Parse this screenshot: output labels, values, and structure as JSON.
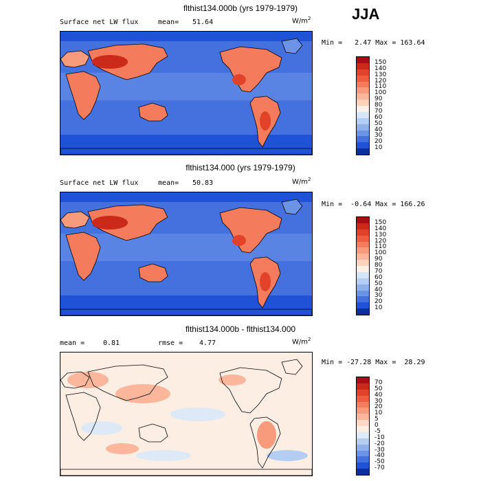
{
  "season": "JJA",
  "panels": [
    {
      "title": "flthist134.000b (yrs 1979-1979)",
      "sub_left": "Surface net LW flux",
      "stat1_label": "mean=",
      "stat1_value": "51.64",
      "stat2_label": "",
      "stat2_value": "",
      "units": "W/m",
      "units_exp": "2",
      "minmax": "Min =   2.47 Max = 163.64",
      "colorbar_labels": [
        "150",
        "140",
        "130",
        "120",
        "110",
        "100",
        "90",
        "80",
        "70",
        "60",
        "50",
        "40",
        "30",
        "20",
        "10"
      ],
      "colorbar_colors": [
        "#a50f15",
        "#cb2a1b",
        "#e2412a",
        "#ee5d3f",
        "#f47c5c",
        "#f89a7c",
        "#fbb69c",
        "#fdd3be",
        "#fdf0e6",
        "#d6e6f8",
        "#b4cef3",
        "#8eb1ec",
        "#6b93e6",
        "#4571df",
        "#1f52d6",
        "#0b2f9c"
      ],
      "map_style": "absolute"
    },
    {
      "title": "flthist134.000 (yrs 1979-1979)",
      "sub_left": "Surface net LW flux",
      "stat1_label": "mean=",
      "stat1_value": "50.83",
      "stat2_label": "",
      "stat2_value": "",
      "units": "W/m",
      "units_exp": "2",
      "minmax": "Min =  -0.64 Max = 166.26",
      "colorbar_labels": [
        "150",
        "140",
        "130",
        "120",
        "110",
        "100",
        "90",
        "80",
        "70",
        "60",
        "50",
        "40",
        "30",
        "20",
        "10"
      ],
      "colorbar_colors": [
        "#a50f15",
        "#cb2a1b",
        "#e2412a",
        "#ee5d3f",
        "#f47c5c",
        "#f89a7c",
        "#fbb69c",
        "#fdd3be",
        "#fdf0e6",
        "#d6e6f8",
        "#b4cef3",
        "#8eb1ec",
        "#6b93e6",
        "#4571df",
        "#1f52d6",
        "#0b2f9c"
      ],
      "map_style": "absolute"
    },
    {
      "title": "flthist134.000b - flthist134.000",
      "sub_left": "mean =",
      "stat1_label": "",
      "stat1_value": "0.81",
      "stat2_label": "rmse =",
      "stat2_value": "4.77",
      "units": "W/m",
      "units_exp": "2",
      "minmax": "Min = -27.28 Max =  28.29",
      "colorbar_labels": [
        "70",
        "50",
        "40",
        "30",
        "20",
        "10",
        "5",
        "0",
        "-5",
        "-10",
        "-20",
        "-30",
        "-40",
        "-50",
        "-70"
      ],
      "colorbar_colors": [
        "#a50f15",
        "#cb2a1b",
        "#e2412a",
        "#ee5d3f",
        "#f47c5c",
        "#f89a7c",
        "#fbb69c",
        "#fdd9c8",
        "#fdeee4",
        "#dde9f7",
        "#b4cef3",
        "#8eb1ec",
        "#6b93e6",
        "#4571df",
        "#1f52d6",
        "#0b2f9c"
      ],
      "map_style": "difference"
    }
  ]
}
